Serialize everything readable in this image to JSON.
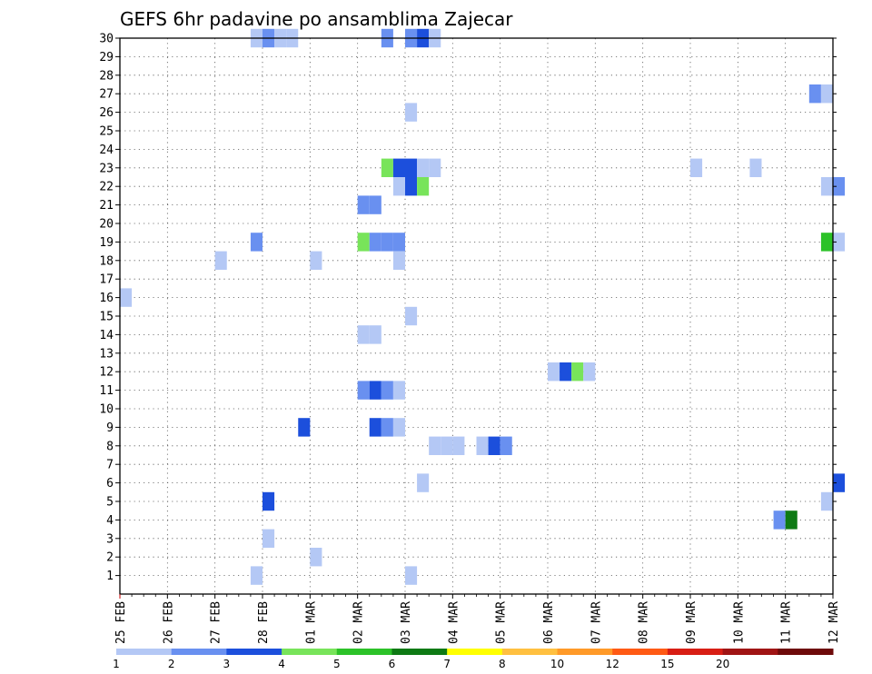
{
  "chart_data": {
    "type": "heatmap",
    "title": "GEFS 6hr padavine po ansamblima Zajecar",
    "xlabel": "",
    "ylabel": "",
    "x_tick_labels": [
      "25 FEB",
      "26 FEB",
      "27 FEB",
      "28 FEB",
      "01 MAR",
      "02 MAR",
      "03 MAR",
      "04 MAR",
      "05 MAR",
      "06 MAR",
      "07 MAR",
      "08 MAR",
      "09 MAR",
      "10 MAR",
      "11 MAR",
      "12 MAR"
    ],
    "y_tick_labels": [
      "1",
      "2",
      "3",
      "4",
      "5",
      "6",
      "7",
      "8",
      "9",
      "10",
      "11",
      "12",
      "13",
      "14",
      "15",
      "16",
      "17",
      "18",
      "19",
      "20",
      "21",
      "22",
      "23",
      "24",
      "25",
      "26",
      "27",
      "28",
      "29",
      "30"
    ],
    "grid": true,
    "time_step_hours": 6,
    "levels": [
      1,
      2,
      3,
      4,
      5,
      6,
      7,
      8,
      10,
      12,
      15,
      20
    ],
    "colorbar_labels": [
      "1",
      "2",
      "3",
      "4",
      "5",
      "6",
      "7",
      "8",
      "10",
      "12",
      "15",
      "20"
    ],
    "colors": [
      "#b4c8f5",
      "#6990f0",
      "#1c4fdc",
      "#78e45a",
      "#2cc228",
      "#0e7a14",
      "#ffff00",
      "#ffc040",
      "#ff9a28",
      "#ff5a14",
      "#d81e14",
      "#a01414",
      "#6e0a0a"
    ],
    "cells": [
      {
        "member": 30,
        "date": "27 FEB 18Z",
        "value": 1.5
      },
      {
        "member": 30,
        "date": "28 FEB 00Z",
        "value": 2.5
      },
      {
        "member": 30,
        "date": "28 FEB 06Z",
        "value": 1.5
      },
      {
        "member": 30,
        "date": "28 FEB 12Z",
        "value": 1.5
      },
      {
        "member": 30,
        "date": "02 MAR 12Z",
        "value": 2.5
      },
      {
        "member": 30,
        "date": "03 MAR 00Z",
        "value": 2.5
      },
      {
        "member": 30,
        "date": "03 MAR 06Z",
        "value": 3.5
      },
      {
        "member": 30,
        "date": "03 MAR 12Z",
        "value": 1.5
      },
      {
        "member": 27,
        "date": "11 MAR 12Z",
        "value": 2.5
      },
      {
        "member": 27,
        "date": "11 MAR 18Z",
        "value": 1.5
      },
      {
        "member": 26,
        "date": "03 MAR 00Z",
        "value": 1.5
      },
      {
        "member": 23,
        "date": "02 MAR 12Z",
        "value": 4.5
      },
      {
        "member": 23,
        "date": "02 MAR 18Z",
        "value": 3.5
      },
      {
        "member": 23,
        "date": "03 MAR 00Z",
        "value": 3.5
      },
      {
        "member": 23,
        "date": "03 MAR 06Z",
        "value": 1.5
      },
      {
        "member": 23,
        "date": "03 MAR 12Z",
        "value": 1.5
      },
      {
        "member": 23,
        "date": "09 MAR 00Z",
        "value": 1.5
      },
      {
        "member": 23,
        "date": "10 MAR 06Z",
        "value": 1.5
      },
      {
        "member": 22,
        "date": "02 MAR 18Z",
        "value": 1.5
      },
      {
        "member": 22,
        "date": "03 MAR 00Z",
        "value": 3.5
      },
      {
        "member": 22,
        "date": "03 MAR 06Z",
        "value": 4.5
      },
      {
        "member": 22,
        "date": "11 MAR 18Z",
        "value": 1.5
      },
      {
        "member": 22,
        "date": "12 MAR 00Z",
        "value": 2.5
      },
      {
        "member": 21,
        "date": "02 MAR 00Z",
        "value": 2.5
      },
      {
        "member": 21,
        "date": "02 MAR 06Z",
        "value": 2.5
      },
      {
        "member": 19,
        "date": "27 FEB 18Z",
        "value": 2.5
      },
      {
        "member": 19,
        "date": "02 MAR 00Z",
        "value": 4.5
      },
      {
        "member": 19,
        "date": "02 MAR 06Z",
        "value": 2.5
      },
      {
        "member": 19,
        "date": "02 MAR 12Z",
        "value": 2.5
      },
      {
        "member": 19,
        "date": "02 MAR 18Z",
        "value": 2.5
      },
      {
        "member": 19,
        "date": "11 MAR 18Z",
        "value": 5.5
      },
      {
        "member": 19,
        "date": "12 MAR 00Z",
        "value": 1.5
      },
      {
        "member": 18,
        "date": "27 FEB 00Z",
        "value": 1.5
      },
      {
        "member": 18,
        "date": "01 MAR 00Z",
        "value": 1.5
      },
      {
        "member": 18,
        "date": "02 MAR 18Z",
        "value": 1.5
      },
      {
        "member": 16,
        "date": "25 FEB 00Z",
        "value": 1.5
      },
      {
        "member": 15,
        "date": "03 MAR 00Z",
        "value": 1.5
      },
      {
        "member": 14,
        "date": "02 MAR 00Z",
        "value": 1.5
      },
      {
        "member": 14,
        "date": "02 MAR 06Z",
        "value": 1.5
      },
      {
        "member": 12,
        "date": "06 MAR 00Z",
        "value": 1.5
      },
      {
        "member": 12,
        "date": "06 MAR 06Z",
        "value": 3.5
      },
      {
        "member": 12,
        "date": "06 MAR 12Z",
        "value": 4.5
      },
      {
        "member": 12,
        "date": "06 MAR 18Z",
        "value": 1.5
      },
      {
        "member": 11,
        "date": "02 MAR 00Z",
        "value": 2.5
      },
      {
        "member": 11,
        "date": "02 MAR 06Z",
        "value": 3.5
      },
      {
        "member": 11,
        "date": "02 MAR 12Z",
        "value": 2.5
      },
      {
        "member": 11,
        "date": "02 MAR 18Z",
        "value": 1.5
      },
      {
        "member": 9,
        "date": "28 FEB 18Z",
        "value": 3.5
      },
      {
        "member": 9,
        "date": "02 MAR 06Z",
        "value": 3.5
      },
      {
        "member": 9,
        "date": "02 MAR 12Z",
        "value": 2.5
      },
      {
        "member": 9,
        "date": "02 MAR 18Z",
        "value": 1.5
      },
      {
        "member": 8,
        "date": "03 MAR 12Z",
        "value": 1.5
      },
      {
        "member": 8,
        "date": "03 MAR 18Z",
        "value": 1.5
      },
      {
        "member": 8,
        "date": "04 MAR 00Z",
        "value": 1.5
      },
      {
        "member": 8,
        "date": "04 MAR 12Z",
        "value": 1.5
      },
      {
        "member": 8,
        "date": "04 MAR 18Z",
        "value": 3.5
      },
      {
        "member": 8,
        "date": "05 MAR 00Z",
        "value": 2.5
      },
      {
        "member": 6,
        "date": "03 MAR 06Z",
        "value": 1.5
      },
      {
        "member": 6,
        "date": "12 MAR 00Z",
        "value": 3.5
      },
      {
        "member": 5,
        "date": "28 FEB 00Z",
        "value": 3.5
      },
      {
        "member": 5,
        "date": "11 MAR 18Z",
        "value": 1.5
      },
      {
        "member": 4,
        "date": "10 MAR 18Z",
        "value": 2.5
      },
      {
        "member": 4,
        "date": "11 MAR 00Z",
        "value": 6.5
      },
      {
        "member": 3,
        "date": "28 FEB 00Z",
        "value": 1.5
      },
      {
        "member": 2,
        "date": "01 MAR 00Z",
        "value": 1.5
      },
      {
        "member": 1,
        "date": "27 FEB 18Z",
        "value": 1.5
      },
      {
        "member": 1,
        "date": "03 MAR 00Z",
        "value": 1.5
      }
    ]
  }
}
